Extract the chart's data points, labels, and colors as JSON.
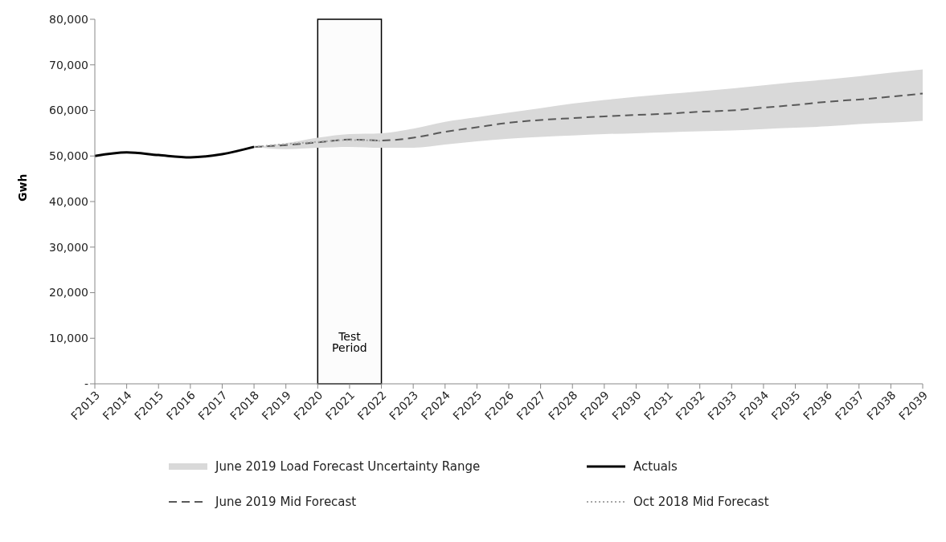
{
  "chart_data": {
    "type": "line",
    "ylabel": "Gwh",
    "categories": [
      "F2013",
      "F2014",
      "F2015",
      "F2016",
      "F2017",
      "F2018",
      "F2019",
      "F2020",
      "F2021",
      "F2022",
      "F2023",
      "F2024",
      "F2025",
      "F2026",
      "F2027",
      "F2028",
      "F2029",
      "F2030",
      "F2031",
      "F2032",
      "F2033",
      "F2034",
      "F2035",
      "F2036",
      "F2037",
      "F2038",
      "F2039"
    ],
    "series": [
      {
        "name": "Actuals",
        "color": "#000000",
        "line_style": "solid",
        "values": [
          50000,
          50800,
          50200,
          49700,
          50400,
          52000,
          null,
          null,
          null,
          null,
          null,
          null,
          null,
          null,
          null,
          null,
          null,
          null,
          null,
          null,
          null,
          null,
          null,
          null,
          null,
          null,
          null
        ]
      },
      {
        "name": "June 2019 Mid Forecast",
        "color": "#595959",
        "line_style": "dashed",
        "values": [
          null,
          null,
          null,
          null,
          null,
          52000,
          52400,
          53000,
          53600,
          53400,
          54000,
          55300,
          56300,
          57300,
          57900,
          58300,
          58700,
          59000,
          59300,
          59700,
          60000,
          60600,
          61200,
          61900,
          62400,
          63000,
          63700
        ],
        "lower": [
          null,
          null,
          null,
          null,
          null,
          52000,
          51500,
          51800,
          52000,
          51800,
          51800,
          52500,
          53200,
          53800,
          54200,
          54500,
          54800,
          55000,
          55200,
          55400,
          55600,
          55900,
          56200,
          56500,
          57000,
          57300,
          57700
        ],
        "upper": [
          null,
          null,
          null,
          null,
          null,
          52000,
          52800,
          54000,
          54800,
          55000,
          56000,
          57500,
          58500,
          59500,
          60500,
          61500,
          62300,
          63000,
          63600,
          64200,
          64800,
          65500,
          66200,
          66800,
          67500,
          68300,
          69000
        ]
      },
      {
        "name": "June 2019 Load Forecast Uncertainty Range",
        "type": "area",
        "color": "#d9d9d9",
        "values": [
          null,
          null,
          null,
          null,
          null,
          null,
          null,
          null,
          null,
          null,
          null,
          null,
          null,
          null,
          null,
          null,
          null,
          null,
          null,
          null,
          null,
          null,
          null,
          null,
          null,
          null,
          null
        ]
      },
      {
        "name": "Oct 2018 Mid Forecast",
        "color": "#a6a6a6",
        "line_style": "dotted",
        "values": [
          null,
          null,
          null,
          null,
          null,
          52000,
          52600,
          53100,
          53500,
          53300,
          null,
          null,
          null,
          null,
          null,
          null,
          null,
          null,
          null,
          null,
          null,
          null,
          null,
          null,
          null,
          null,
          null
        ]
      }
    ],
    "ylim": [
      0,
      80000
    ],
    "yticks": [
      {
        "value": 0,
        "label": "-"
      },
      {
        "value": 10000,
        "label": "10,000"
      },
      {
        "value": 20000,
        "label": "20,000"
      },
      {
        "value": 30000,
        "label": "30,000"
      },
      {
        "value": 40000,
        "label": "40,000"
      },
      {
        "value": 50000,
        "label": "50,000"
      },
      {
        "value": 60000,
        "label": "60,000"
      },
      {
        "value": 70000,
        "label": "70,000"
      },
      {
        "value": 80000,
        "label": "80,000"
      }
    ],
    "bands": [
      {
        "axis": "x",
        "from": "F2020",
        "to": "F2022",
        "label": "Test Period",
        "color": "#000000"
      }
    ],
    "grid": false,
    "legend": "bottom",
    "marker": "none"
  }
}
